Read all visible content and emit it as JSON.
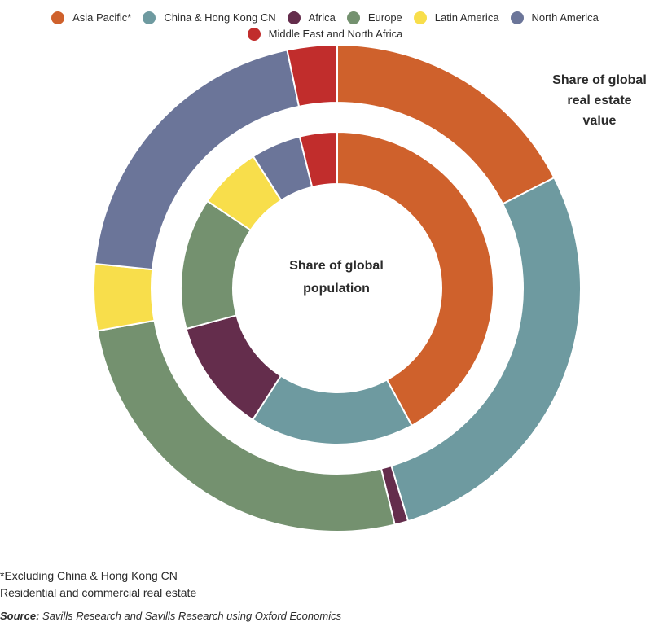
{
  "legend": [
    {
      "label": "Asia Pacific*",
      "color": "#cf612c"
    },
    {
      "label": "China & Hong Kong CN",
      "color": "#6e9aa0"
    },
    {
      "label": "Africa",
      "color": "#642d4c"
    },
    {
      "label": "Europe",
      "color": "#74916f"
    },
    {
      "label": "Latin America",
      "color": "#f8de4b"
    },
    {
      "label": "North America",
      "color": "#6b7599"
    },
    {
      "label": "Middle East and North Africa",
      "color": "#c12d2c"
    }
  ],
  "outer_title": "Share of global real estate value",
  "center_title": "Share of global population",
  "notes": [
    "*Excluding China & Hong Kong CN",
    "Residential and commercial real estate"
  ],
  "source_label": "Source:",
  "source_text": "Savills Research and Savills Research using Oxford Economics",
  "chart_data": {
    "type": "pie",
    "subtype": "nested-donut",
    "categories": [
      "Asia Pacific*",
      "China & Hong Kong CN",
      "Africa",
      "Europe",
      "Latin America",
      "North America",
      "Middle East and North Africa"
    ],
    "series": [
      {
        "name": "Share of global real estate value",
        "ring": "outer",
        "values": [
          17.5,
          27.8,
          0.9,
          26.0,
          4.4,
          20.1,
          3.3
        ]
      },
      {
        "name": "Share of global population",
        "ring": "inner",
        "values": [
          35.9,
          14.5,
          10.0,
          11.6,
          5.6,
          4.4,
          3.3
        ]
      }
    ]
  }
}
